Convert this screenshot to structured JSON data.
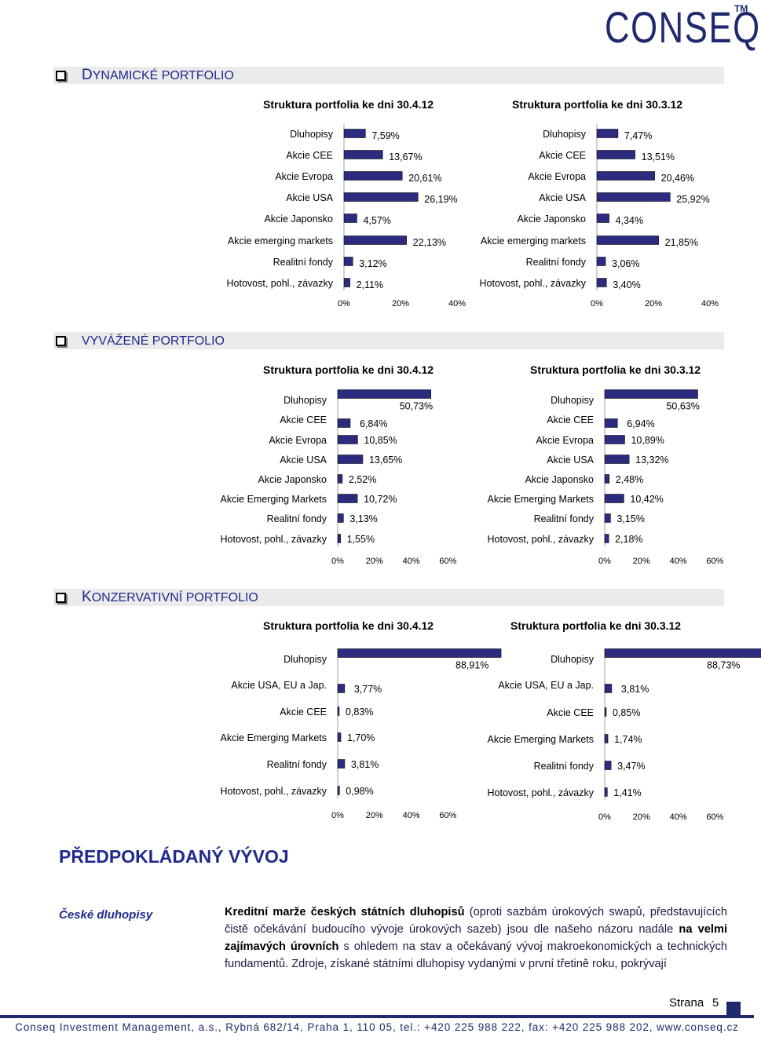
{
  "brand": {
    "logo_text": "CONSEQ",
    "trademark": "TM",
    "color": "#1f2a6e"
  },
  "sections": {
    "dynamic": {
      "first": "D",
      "rest": "YNAMICKÉ PORTFOLIO"
    },
    "balanced": {
      "first": "",
      "rest": "VYVÁŽENÉ PORTFOLIO"
    },
    "conservative": {
      "first": "K",
      "rest": "ONZERVATIVNÍ PORTFOLIO"
    }
  },
  "chart_data": [
    {
      "type": "bar",
      "orientation": "horizontal",
      "title": "Struktura portfolia ke dni 30.4.12",
      "categories": [
        "Dluhopisy",
        "Akcie CEE",
        "Akcie Evropa",
        "Akcie USA",
        "Akcie Japonsko",
        "Akcie emerging markets",
        "Realitní fondy",
        "Hotovost, pohl., závazky"
      ],
      "values": [
        7.59,
        13.67,
        20.61,
        26.19,
        4.57,
        22.13,
        3.12,
        2.11
      ],
      "data_labels": [
        "7,59%",
        "13,67%",
        "20,61%",
        "26,19%",
        "4,57%",
        "22,13%",
        "3,12%",
        "2,11%"
      ],
      "xlim": [
        0,
        40
      ],
      "ticks": [
        "0%",
        "20%",
        "40%"
      ],
      "color": "#2b2b80"
    },
    {
      "type": "bar",
      "orientation": "horizontal",
      "title": "Struktura portfolia ke dni 30.3.12",
      "categories": [
        "Dluhopisy",
        "Akcie CEE",
        "Akcie Evropa",
        "Akcie USA",
        "Akcie Japonsko",
        "Akcie emerging markets",
        "Realitní fondy",
        "Hotovost, pohl., závazky"
      ],
      "values": [
        7.47,
        13.51,
        20.46,
        25.92,
        4.34,
        21.85,
        3.06,
        3.4
      ],
      "data_labels": [
        "7,47%",
        "13,51%",
        "20,46%",
        "25,92%",
        "4,34%",
        "21,85%",
        "3,06%",
        "3,40%"
      ],
      "xlim": [
        0,
        40
      ],
      "ticks": [
        "0%",
        "20%",
        "40%"
      ],
      "color": "#2b2b80"
    },
    {
      "type": "bar",
      "orientation": "horizontal",
      "title": "Struktura portfolia ke dni 30.4.12",
      "categories": [
        "Dluhopisy",
        "Akcie CEE",
        "Akcie Evropa",
        "Akcie USA",
        "Akcie Japonsko",
        "Akcie Emerging Markets",
        "Realitní fondy",
        "Hotovost, pohl., závazky"
      ],
      "values": [
        50.73,
        6.84,
        10.85,
        13.65,
        2.52,
        10.72,
        3.13,
        1.55
      ],
      "data_labels": [
        "50,73%",
        "6,84%",
        "10,85%",
        "13,65%",
        "2,52%",
        "10,72%",
        "3,13%",
        "1,55%"
      ],
      "xlim": [
        0,
        60
      ],
      "ticks": [
        "0%",
        "20%",
        "40%",
        "60%"
      ],
      "color": "#2b2b80"
    },
    {
      "type": "bar",
      "orientation": "horizontal",
      "title": "Struktura portfolia ke dni 30.3.12",
      "categories": [
        "Dluhopisy",
        "Akcie CEE",
        "Akcie Evropa",
        "Akcie USA",
        "Akcie Japonsko",
        "Akcie Emerging Markets",
        "Realitní fondy",
        "Hotovost, pohl., závazky"
      ],
      "values": [
        50.63,
        6.94,
        10.89,
        13.32,
        2.48,
        10.42,
        3.15,
        2.18
      ],
      "data_labels": [
        "50,63%",
        "6,94%",
        "10,89%",
        "13,32%",
        "2,48%",
        "10,42%",
        "3,15%",
        "2,18%"
      ],
      "xlim": [
        0,
        60
      ],
      "ticks": [
        "0%",
        "20%",
        "40%",
        "60%"
      ],
      "color": "#2b2b80"
    },
    {
      "type": "bar",
      "orientation": "horizontal",
      "title": "Struktura portfolia ke dni 30.4.12",
      "categories": [
        "Dluhopisy",
        "Akcie USA, EU a Jap.",
        "Akcie CEE",
        "Akcie Emerging Markets",
        "Realitní fondy",
        "Hotovost, pohl., závazky"
      ],
      "values": [
        88.91,
        3.77,
        0.83,
        1.7,
        3.81,
        0.98
      ],
      "data_labels": [
        "88,91%",
        "3,77%",
        "0,83%",
        "1,70%",
        "3,81%",
        "0,98%"
      ],
      "xlim": [
        0,
        60
      ],
      "ticks": [
        "0%",
        "20%",
        "40%",
        "60%"
      ],
      "color": "#2b2b80"
    },
    {
      "type": "bar",
      "orientation": "horizontal",
      "title": "Struktura portfolia ke dni 30.3.12",
      "categories": [
        "Dluhopisy",
        "Akcie USA, EU a Jap.",
        "Akcie CEE",
        "Akcie Emerging Markets",
        "Realitní fondy",
        "Hotovost, pohl., závazky"
      ],
      "values": [
        88.73,
        3.81,
        0.85,
        1.74,
        3.47,
        1.41
      ],
      "data_labels": [
        "88,73%",
        "3,81%",
        "0,85%",
        "1,74%",
        "3,47%",
        "1,41%"
      ],
      "xlim": [
        0,
        60
      ],
      "ticks": [
        "0%",
        "20%",
        "40%",
        "60%"
      ],
      "color": "#2b2b80"
    }
  ],
  "outlook": {
    "heading": "PŘEDPOKLÁDANÝ VÝVOJ",
    "subheading": "České dluhopisy",
    "p_bold1": "Kreditní marže českých státních dluhopisů",
    "p_text1": " (oproti sazbám úrokových swapů, představujících čistě očekávání budoucího vývoje úrokových sazeb) jsou dle našeho názoru nadále ",
    "p_bold2": "na velmi zajímavých úrovních",
    "p_text2": " s ohledem na stav a očekávaný vývoj makroekonomických a technických fundamentů. Zdroje, získané státními dluhopisy vydanými v první třetině roku, pokrývají"
  },
  "page": {
    "label": "Strana",
    "number": "5"
  },
  "footer": "Conseq Investment Management, a.s., Rybná 682/14, Praha 1, 110 05, tel.: +420 225 988 222, fax: +420 225 988 202, www.conseq.cz"
}
